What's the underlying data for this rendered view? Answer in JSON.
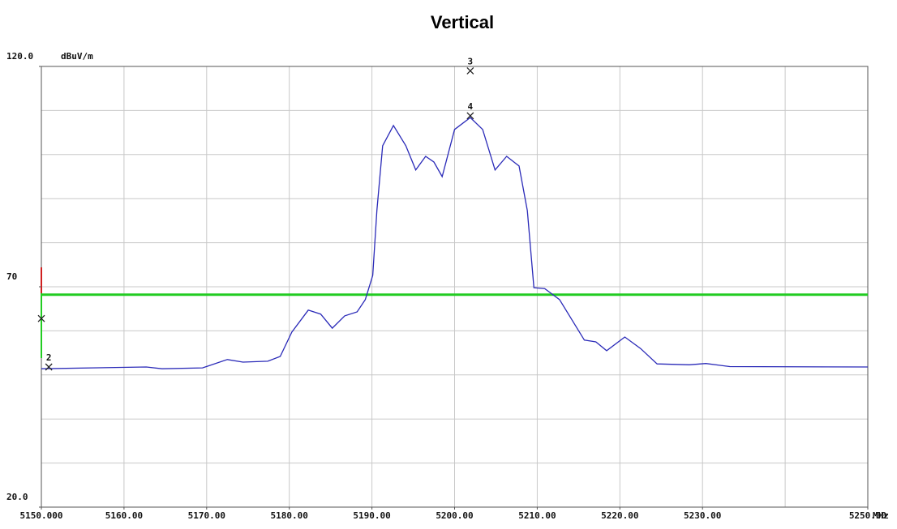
{
  "chart_data": {
    "type": "line",
    "title": "Vertical",
    "ylabel": "dBuV/m",
    "xlabel": "MHz",
    "x": [
      5150.0,
      5162.7,
      5164.6,
      5169.5,
      5172.5,
      5174.4,
      5177.4,
      5178.9,
      5180.3,
      5182.3,
      5183.8,
      5185.2,
      5186.7,
      5188.2,
      5189.2,
      5190.1,
      5190.6,
      5191.3,
      5192.6,
      5194.1,
      5195.3,
      5196.5,
      5197.5,
      5198.5,
      5200.0,
      5201.9,
      5203.4,
      5204.9,
      5206.3,
      5207.8,
      5208.8,
      5209.6,
      5210.9,
      5212.7,
      5214.2,
      5215.7,
      5217.1,
      5218.4,
      5220.6,
      5222.5,
      5224.5,
      5228.4,
      5230.4,
      5233.3,
      5250.0
    ],
    "values": [
      51.4,
      51.8,
      51.4,
      51.6,
      53.5,
      52.9,
      53.1,
      54.2,
      59.7,
      64.7,
      63.8,
      60.6,
      63.4,
      64.3,
      67.1,
      72.6,
      87.3,
      102.0,
      106.6,
      102.0,
      96.5,
      99.6,
      98.3,
      95.0,
      105.7,
      108.4,
      105.7,
      96.5,
      99.6,
      97.4,
      87.3,
      69.8,
      69.6,
      67.1,
      62.5,
      57.9,
      57.5,
      55.5,
      58.6,
      56.0,
      52.5,
      52.3,
      52.6,
      51.9,
      51.8
    ],
    "color": "#2a2ab8",
    "limit": 68.2,
    "limit_color": "#22cc22",
    "markers": [
      {
        "label": null,
        "x": 5150.0,
        "y": 62.8
      },
      {
        "label": "2",
        "x": 5150.9,
        "y": 51.8
      },
      {
        "label": "3",
        "x": 5201.9,
        "y": 119.0
      },
      {
        "label": "4",
        "x": 5201.9,
        "y": 108.8
      }
    ],
    "xlim": [
      5150,
      5250
    ],
    "ylim": [
      20,
      120
    ],
    "xticks": [
      {
        "value": 5150,
        "label": "5150.000"
      },
      {
        "value": 5160,
        "label": "5160.00"
      },
      {
        "value": 5170,
        "label": "5170.00"
      },
      {
        "value": 5180,
        "label": "5180.00"
      },
      {
        "value": 5190,
        "label": "5190.00"
      },
      {
        "value": 5200,
        "label": "5200.00"
      },
      {
        "value": 5210,
        "label": "5210.00"
      },
      {
        "value": 5220,
        "label": "5220.00"
      },
      {
        "value": 5230,
        "label": "5230.00"
      },
      {
        "value": 5250,
        "label": "5250.00"
      }
    ],
    "yticks": [
      {
        "value": 120,
        "label": "120.0"
      },
      70,
      {
        "value": 20,
        "label": "20.0"
      }
    ],
    "xgrid": [
      5150,
      5160,
      5170,
      5180,
      5190,
      5200,
      5210,
      5220,
      5230,
      5240,
      5250
    ],
    "ygrid": [
      20,
      30,
      40,
      50,
      60,
      70,
      80,
      90,
      100,
      110,
      120
    ],
    "grid": true
  }
}
